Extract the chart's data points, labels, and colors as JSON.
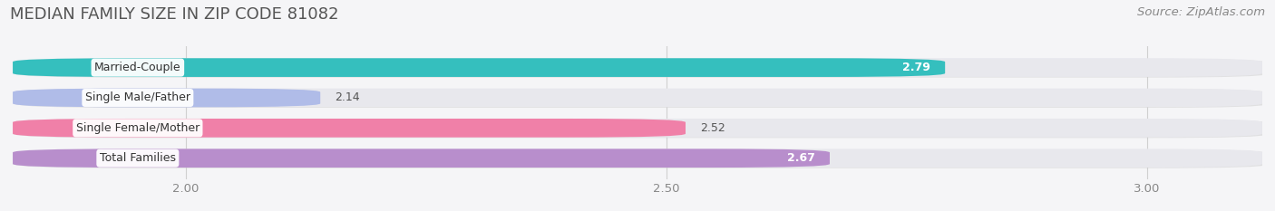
{
  "title": "MEDIAN FAMILY SIZE IN ZIP CODE 81082",
  "source": "Source: ZipAtlas.com",
  "categories": [
    "Married-Couple",
    "Single Male/Father",
    "Single Female/Mother",
    "Total Families"
  ],
  "values": [
    2.79,
    2.14,
    2.52,
    2.67
  ],
  "bar_colors": [
    "#35bfbe",
    "#b0bce8",
    "#f080a8",
    "#b88ecc"
  ],
  "value_inside": [
    true,
    false,
    false,
    true
  ],
  "xlim_min": 1.82,
  "xlim_max": 3.12,
  "xticks": [
    2.0,
    2.5,
    3.0
  ],
  "bar_height": 0.62,
  "background_color": "#f5f5f7",
  "bar_bg_color": "#e8e8ed",
  "title_fontsize": 13,
  "source_fontsize": 9.5,
  "label_fontsize": 9,
  "value_fontsize": 9,
  "tick_fontsize": 9.5
}
